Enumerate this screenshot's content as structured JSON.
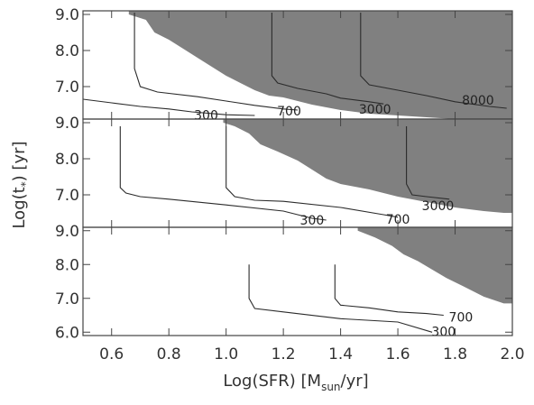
{
  "chart_data": {
    "type": "contour",
    "xlabel": "Log(SFR) [M_sun/yr]",
    "xlabel_parts": {
      "main": "Log(SFR) [M",
      "sub": "sun",
      "end": "/yr]"
    },
    "ylabel": "Log(t_*) [yr]",
    "ylabel_parts": {
      "main": "Log(t",
      "sub": "*",
      "end": ") [yr]"
    },
    "xlim": [
      0.5,
      2.0
    ],
    "x_ticks": [
      0.6,
      0.8,
      1.0,
      1.2,
      1.4,
      1.6,
      1.8,
      2.0
    ],
    "x_tick_labels": [
      "0.6",
      "0.8",
      "1.0",
      "1.2",
      "1.4",
      "1.6",
      "1.8",
      "2.0"
    ],
    "colors": {
      "shaded": "#808080",
      "line": "#2b2b2b",
      "axis": "#444444"
    },
    "panels": [
      {
        "ylim": [
          6.1,
          9.1
        ],
        "y_ticks": [
          7.0,
          8.0,
          9.0
        ],
        "y_tick_labels": [
          "7.0",
          "8.0",
          "9.0"
        ],
        "shaded_boundary": [
          [
            0.66,
            9.1
          ],
          [
            0.66,
            9.0
          ],
          [
            0.72,
            8.85
          ],
          [
            0.75,
            8.5
          ],
          [
            0.8,
            8.3
          ],
          [
            0.85,
            8.05
          ],
          [
            0.9,
            7.8
          ],
          [
            0.95,
            7.55
          ],
          [
            1.0,
            7.3
          ],
          [
            1.05,
            7.1
          ],
          [
            1.1,
            6.9
          ],
          [
            1.15,
            6.75
          ],
          [
            1.2,
            6.7
          ],
          [
            1.3,
            6.5
          ],
          [
            1.4,
            6.35
          ],
          [
            1.5,
            6.25
          ],
          [
            1.6,
            6.2
          ],
          [
            1.7,
            6.15
          ],
          [
            1.8,
            6.1
          ]
        ],
        "contours": [
          {
            "level": "300",
            "label": "300",
            "points": [
              [
                0.5,
                6.65
              ],
              [
                0.6,
                6.55
              ],
              [
                0.7,
                6.45
              ],
              [
                0.8,
                6.38
              ],
              [
                0.88,
                6.3
              ],
              [
                1.0,
                6.22
              ],
              [
                1.1,
                6.2
              ]
            ],
            "label_at": [
              0.93,
              6.21
            ]
          },
          {
            "level": "700",
            "label": "700",
            "points": [
              [
                0.68,
                9.05
              ],
              [
                0.68,
                7.5
              ],
              [
                0.7,
                7.0
              ],
              [
                0.76,
                6.85
              ],
              [
                0.9,
                6.72
              ],
              [
                1.0,
                6.6
              ],
              [
                1.1,
                6.48
              ],
              [
                1.2,
                6.38
              ],
              [
                1.25,
                6.35
              ]
            ],
            "label_at": [
              1.22,
              6.33
            ]
          },
          {
            "level": "3000",
            "label": "3000",
            "points": [
              [
                1.16,
                9.05
              ],
              [
                1.16,
                7.3
              ],
              [
                1.18,
                7.1
              ],
              [
                1.25,
                6.95
              ],
              [
                1.35,
                6.8
              ],
              [
                1.4,
                6.68
              ],
              [
                1.5,
                6.58
              ],
              [
                1.55,
                6.52
              ]
            ],
            "label_at": [
              1.52,
              6.38
            ]
          },
          {
            "level": "8000",
            "label": "8000",
            "points": [
              [
                1.47,
                9.05
              ],
              [
                1.47,
                7.3
              ],
              [
                1.5,
                7.05
              ],
              [
                1.6,
                6.9
              ],
              [
                1.7,
                6.75
              ],
              [
                1.8,
                6.58
              ],
              [
                1.92,
                6.45
              ],
              [
                1.98,
                6.4
              ]
            ],
            "label_at": [
              1.88,
              6.62
            ]
          }
        ]
      },
      {
        "ylim": [
          6.1,
          9.1
        ],
        "y_ticks": [
          7.0,
          8.0,
          9.0
        ],
        "y_tick_labels": [
          "7.0",
          "8.0",
          "9.0"
        ],
        "shaded_boundary": [
          [
            0.99,
            9.1
          ],
          [
            0.99,
            9.0
          ],
          [
            1.03,
            8.9
          ],
          [
            1.08,
            8.7
          ],
          [
            1.12,
            8.4
          ],
          [
            1.18,
            8.2
          ],
          [
            1.25,
            7.95
          ],
          [
            1.3,
            7.7
          ],
          [
            1.35,
            7.45
          ],
          [
            1.4,
            7.3
          ],
          [
            1.5,
            7.15
          ],
          [
            1.6,
            6.95
          ],
          [
            1.7,
            6.8
          ],
          [
            1.8,
            6.65
          ],
          [
            1.9,
            6.55
          ],
          [
            1.97,
            6.5
          ]
        ],
        "contours": [
          {
            "level": "300",
            "label": "300",
            "points": [
              [
                0.63,
                8.9
              ],
              [
                0.63,
                7.2
              ],
              [
                0.65,
                7.05
              ],
              [
                0.7,
                6.95
              ],
              [
                0.8,
                6.88
              ],
              [
                1.0,
                6.72
              ],
              [
                1.2,
                6.55
              ],
              [
                1.3,
                6.35
              ],
              [
                1.35,
                6.3
              ]
            ],
            "label_at": [
              1.3,
              6.3
            ]
          },
          {
            "level": "700",
            "label": "700",
            "points": [
              [
                1.0,
                8.9
              ],
              [
                1.0,
                7.2
              ],
              [
                1.03,
                6.95
              ],
              [
                1.1,
                6.85
              ],
              [
                1.2,
                6.82
              ],
              [
                1.4,
                6.65
              ],
              [
                1.55,
                6.45
              ],
              [
                1.6,
                6.38
              ]
            ],
            "label_at": [
              1.6,
              6.32
            ]
          },
          {
            "level": "3000",
            "label": "3000",
            "points": [
              [
                1.63,
                8.9
              ],
              [
                1.63,
                7.3
              ],
              [
                1.65,
                7.0
              ],
              [
                1.7,
                6.95
              ],
              [
                1.78,
                6.88
              ]
            ],
            "label_at": [
              1.74,
              6.7
            ]
          }
        ]
      },
      {
        "ylim": [
          5.9,
          9.1
        ],
        "y_ticks": [
          6.0,
          7.0,
          8.0,
          9.0
        ],
        "y_tick_labels": [
          "6.0",
          "7.0",
          "8.0",
          "9.0"
        ],
        "shaded_boundary": [
          [
            1.46,
            9.1
          ],
          [
            1.46,
            9.0
          ],
          [
            1.52,
            8.8
          ],
          [
            1.58,
            8.55
          ],
          [
            1.62,
            8.3
          ],
          [
            1.67,
            8.1
          ],
          [
            1.72,
            7.85
          ],
          [
            1.77,
            7.6
          ],
          [
            1.83,
            7.35
          ],
          [
            1.9,
            7.05
          ],
          [
            1.97,
            6.85
          ]
        ],
        "contours": [
          {
            "level": "300",
            "label": "300",
            "points": [
              [
                1.08,
                8.0
              ],
              [
                1.08,
                7.0
              ],
              [
                1.1,
                6.7
              ],
              [
                1.2,
                6.6
              ],
              [
                1.4,
                6.4
              ],
              [
                1.6,
                6.3
              ],
              [
                1.72,
                6.0
              ]
            ],
            "label_at": [
              1.76,
              6.02
            ]
          },
          {
            "level": "700",
            "label": "700",
            "points": [
              [
                1.38,
                8.0
              ],
              [
                1.38,
                7.0
              ],
              [
                1.4,
                6.8
              ],
              [
                1.5,
                6.72
              ],
              [
                1.6,
                6.6
              ],
              [
                1.7,
                6.55
              ],
              [
                1.76,
                6.5
              ]
            ],
            "label_at": [
              1.82,
              6.45
            ]
          }
        ]
      }
    ]
  }
}
